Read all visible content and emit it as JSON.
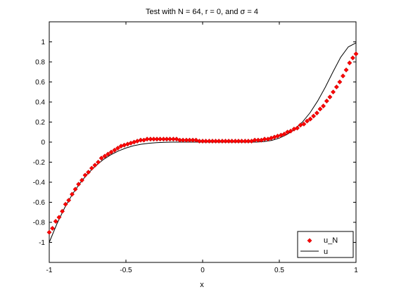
{
  "chart_data": {
    "type": "scatter",
    "title": "Test with N = 64, r = 0, and σ = 4",
    "xlabel": "x",
    "ylabel": "",
    "xlim": [
      -1,
      1
    ],
    "ylim": [
      -1.2,
      1.2
    ],
    "xticks": [
      -1,
      -0.5,
      0,
      0.5,
      1
    ],
    "xtick_labels": [
      "-1",
      "-0.5",
      "0",
      "0.5",
      "1"
    ],
    "yticks": [
      -1,
      -0.8,
      -0.6,
      -0.4,
      -0.2,
      0,
      0.2,
      0.4,
      0.6,
      0.8,
      1
    ],
    "ytick_labels": [
      "-1",
      "-0.8",
      "-0.6",
      "-0.4",
      "-0.2",
      "0",
      "0.2",
      "0.4",
      "0.6",
      "0.8",
      "1"
    ],
    "grid": false,
    "legend_position": "bottom-right",
    "series": [
      {
        "name": "u_N",
        "style": "markers",
        "color": "#ff0000",
        "x": [
          -1.0,
          -0.979,
          -0.958,
          -0.936,
          -0.915,
          -0.894,
          -0.873,
          -0.851,
          -0.83,
          -0.809,
          -0.787,
          -0.766,
          -0.745,
          -0.723,
          -0.702,
          -0.681,
          -0.66,
          -0.638,
          -0.617,
          -0.596,
          -0.574,
          -0.553,
          -0.532,
          -0.511,
          -0.489,
          -0.468,
          -0.447,
          -0.426,
          -0.404,
          -0.383,
          -0.362,
          -0.34,
          -0.319,
          -0.298,
          -0.277,
          -0.255,
          -0.234,
          -0.213,
          -0.191,
          -0.17,
          -0.149,
          -0.128,
          -0.106,
          -0.085,
          -0.064,
          -0.043,
          -0.021,
          0.0,
          0.021,
          0.043,
          0.064,
          0.085,
          0.106,
          0.128,
          0.149,
          0.17,
          0.191,
          0.213,
          0.234,
          0.255,
          0.277,
          0.298,
          0.319,
          0.34,
          0.362,
          0.383,
          0.404,
          0.426,
          0.447,
          0.468,
          0.489,
          0.511,
          0.532,
          0.553,
          0.574,
          0.596,
          0.617,
          0.638,
          0.66,
          0.681,
          0.702,
          0.723,
          0.745,
          0.766,
          0.787,
          0.809,
          0.83,
          0.851,
          0.873,
          0.894,
          0.915,
          0.936,
          0.958,
          0.979,
          1.0
        ],
        "y": [
          -0.9,
          -0.86,
          -0.79,
          -0.75,
          -0.69,
          -0.62,
          -0.58,
          -0.52,
          -0.47,
          -0.42,
          -0.38,
          -0.33,
          -0.3,
          -0.26,
          -0.23,
          -0.2,
          -0.16,
          -0.14,
          -0.12,
          -0.1,
          -0.08,
          -0.06,
          -0.04,
          -0.03,
          -0.02,
          -0.01,
          0.0,
          0.01,
          0.02,
          0.02,
          0.03,
          0.03,
          0.03,
          0.03,
          0.03,
          0.03,
          0.03,
          0.03,
          0.03,
          0.03,
          0.02,
          0.02,
          0.02,
          0.02,
          0.02,
          0.02,
          0.01,
          0.01,
          0.01,
          0.01,
          0.01,
          0.01,
          0.01,
          0.01,
          0.01,
          0.01,
          0.01,
          0.01,
          0.01,
          0.01,
          0.01,
          0.01,
          0.01,
          0.02,
          0.02,
          0.02,
          0.03,
          0.03,
          0.04,
          0.05,
          0.06,
          0.07,
          0.08,
          0.1,
          0.11,
          0.13,
          0.14,
          0.17,
          0.18,
          0.21,
          0.23,
          0.26,
          0.29,
          0.33,
          0.36,
          0.41,
          0.45,
          0.5,
          0.55,
          0.6,
          0.66,
          0.72,
          0.79,
          0.84,
          0.88
        ]
      },
      {
        "name": "u",
        "style": "line",
        "color": "#000000",
        "x": [
          -1.0,
          -0.95,
          -0.9,
          -0.85,
          -0.8,
          -0.75,
          -0.7,
          -0.65,
          -0.6,
          -0.55,
          -0.5,
          -0.45,
          -0.4,
          -0.35,
          -0.3,
          -0.25,
          -0.2,
          -0.15,
          -0.1,
          -0.05,
          0.0,
          0.05,
          0.1,
          0.15,
          0.2,
          0.25,
          0.3,
          0.35,
          0.4,
          0.45,
          0.5,
          0.55,
          0.6,
          0.65,
          0.7,
          0.75,
          0.8,
          0.85,
          0.9,
          0.95,
          1.0
        ],
        "y": [
          -1.0,
          -0.815,
          -0.656,
          -0.522,
          -0.41,
          -0.316,
          -0.24,
          -0.177,
          -0.128,
          -0.089,
          -0.059,
          -0.036,
          -0.021,
          -0.011,
          -0.005,
          -0.002,
          0.0,
          0.0,
          0.0,
          0.0,
          0.0,
          0.0,
          0.0,
          0.0,
          0.0,
          0.0,
          0.0,
          0.0,
          0.005,
          0.017,
          0.04,
          0.076,
          0.128,
          0.199,
          0.292,
          0.41,
          0.548,
          0.701,
          0.846,
          0.95,
          0.99
        ]
      }
    ]
  }
}
